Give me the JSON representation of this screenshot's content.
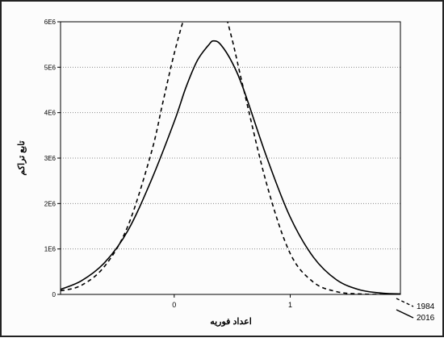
{
  "chart_data": {
    "type": "line",
    "title": "",
    "xlabel": "اعداد فوریه",
    "ylabel": "تابع تراکم",
    "xlim": [
      -0.98,
      1.95
    ],
    "ylim": [
      0,
      6000000
    ],
    "x_ticks": [
      0,
      1
    ],
    "x_tick_labels": [
      "0",
      "1"
    ],
    "y_ticks": [
      0,
      1000000,
      2000000,
      3000000,
      4000000,
      5000000,
      6000000
    ],
    "y_tick_labels": [
      "0",
      "1E6",
      "2E6",
      "3E6",
      "4E6",
      "5E6",
      "6E6"
    ],
    "grid": "horizontal dotted",
    "legend_position": "bottom-right outside",
    "series": [
      {
        "name": "1984",
        "line_style": "dashed",
        "color": "#000000",
        "x": [
          -0.98,
          -0.8,
          -0.6,
          -0.4,
          -0.2,
          -0.1,
          0.0,
          0.1,
          0.2,
          0.3,
          0.4,
          0.5,
          0.6,
          0.8,
          1.0,
          1.2,
          1.4,
          1.6,
          1.8,
          1.95
        ],
        "values": [
          80000,
          200000,
          620000,
          1500000,
          3100000,
          4200000,
          5300000,
          6200000,
          6800000,
          6900000,
          6500000,
          5600000,
          4500000,
          2400000,
          900000,
          270000,
          60000,
          10000,
          0,
          0
        ]
      },
      {
        "name": "2016",
        "line_style": "solid",
        "color": "#000000",
        "x": [
          -0.98,
          -0.8,
          -0.6,
          -0.4,
          -0.2,
          0.0,
          0.1,
          0.2,
          0.3,
          0.34,
          0.4,
          0.5,
          0.6,
          0.8,
          1.0,
          1.2,
          1.4,
          1.6,
          1.8,
          1.95
        ],
        "values": [
          110000,
          300000,
          700000,
          1400000,
          2500000,
          3800000,
          4550000,
          5150000,
          5500000,
          5580000,
          5500000,
          5100000,
          4500000,
          3000000,
          1700000,
          820000,
          320000,
          100000,
          25000,
          10000
        ]
      }
    ]
  }
}
